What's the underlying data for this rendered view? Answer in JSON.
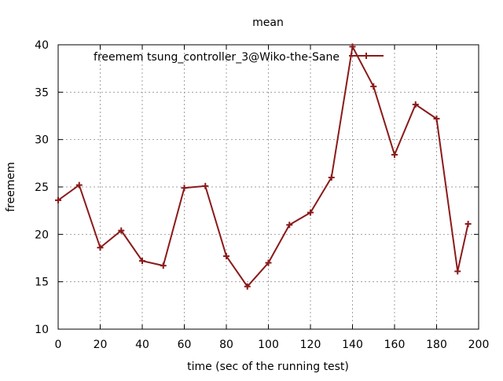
{
  "chart_data": {
    "type": "line",
    "title": "mean",
    "xlabel": "time (sec of the running test)",
    "ylabel": "freemem",
    "xlim": [
      0,
      200
    ],
    "ylim": [
      10,
      40
    ],
    "x_ticks": [
      "0",
      "20",
      "40",
      "60",
      "80",
      "100",
      "120",
      "140",
      "160",
      "180",
      "200"
    ],
    "y_ticks": [
      "10",
      "15",
      "20",
      "25",
      "30",
      "35",
      "40"
    ],
    "grid": true,
    "legend_position": "top-right",
    "colors": {
      "series": "#8b1a1a"
    },
    "series": [
      {
        "name": "freemem tsung_controller_3@Wiko-the-Sane",
        "x": [
          0,
          10,
          20,
          30,
          40,
          50,
          60,
          70,
          80,
          90,
          100,
          110,
          120,
          130,
          140,
          150,
          160,
          170,
          180,
          190,
          195
        ],
        "y": [
          23.6,
          25.2,
          18.6,
          20.4,
          17.2,
          16.7,
          24.9,
          25.1,
          17.7,
          14.5,
          17.0,
          21.0,
          22.3,
          26.0,
          39.8,
          35.6,
          28.4,
          33.7,
          32.2,
          16.1,
          21.1
        ]
      }
    ]
  }
}
